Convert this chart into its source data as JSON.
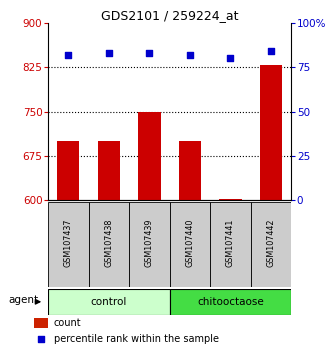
{
  "title": "GDS2101 / 259224_at",
  "samples": [
    "GSM107437",
    "GSM107438",
    "GSM107439",
    "GSM107440",
    "GSM107441",
    "GSM107442"
  ],
  "counts": [
    700,
    700,
    750,
    700,
    602,
    828
  ],
  "percentiles": [
    82,
    83,
    83,
    82,
    80,
    84
  ],
  "ylim_left": [
    600,
    900
  ],
  "ylim_right": [
    0,
    100
  ],
  "yticks_left": [
    600,
    675,
    750,
    825,
    900
  ],
  "yticks_right": [
    0,
    25,
    50,
    75,
    100
  ],
  "ytick_labels_right": [
    "0",
    "25",
    "50",
    "75",
    "100%"
  ],
  "groups": [
    {
      "label": "control",
      "indices": [
        0,
        1,
        2
      ],
      "color": "#ccffcc"
    },
    {
      "label": "chitooctaose",
      "indices": [
        3,
        4,
        5
      ],
      "color": "#44dd44"
    }
  ],
  "bar_color": "#cc0000",
  "scatter_color": "#0000cc",
  "bar_width": 0.55,
  "left_tick_color": "#cc0000",
  "right_tick_color": "#0000cc",
  "background_labels": "#cccccc",
  "legend_bar_color": "#cc2200",
  "legend_dot_color": "#0000cc"
}
